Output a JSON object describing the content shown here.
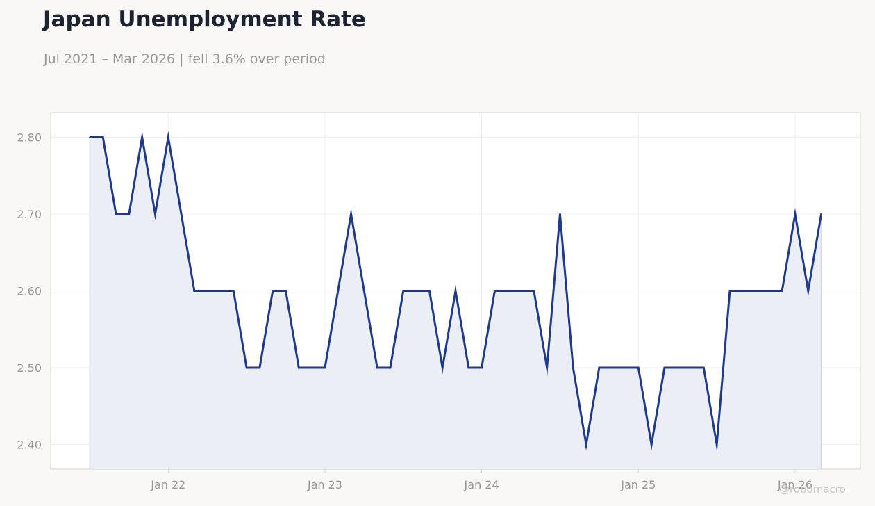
{
  "title": "Japan Unemployment Rate",
  "subtitle": "Jul 2021 – Mar 2026 | fell 3.6% over period",
  "watermark": "@robomacro",
  "colors": {
    "line": "#1f3a8a",
    "fill": "#eceef5",
    "grid": "#ededed",
    "axis": "#d6d4d0",
    "background": "#f9f8f6",
    "plot_background": "#ffffff"
  },
  "chart_data": {
    "type": "area",
    "title": "Japan Unemployment Rate",
    "subtitle": "Jul 2021 – Mar 2026 | fell 3.6% over period",
    "xlabel": "",
    "ylabel": "",
    "x_ticks": [
      "Jan 22",
      "Jan 23",
      "Jan 24",
      "Jan 25",
      "Jan 26"
    ],
    "y_ticks": [
      "2.40",
      "2.50",
      "2.60",
      "2.70",
      "2.80"
    ],
    "ylim": [
      2.368,
      2.832
    ],
    "xlim": [
      "2021-04",
      "2026-06"
    ],
    "grid": true,
    "legend": "none",
    "series": [
      {
        "x": [
          "2021-07",
          "2021-08",
          "2021-09",
          "2021-10",
          "2021-11",
          "2021-12",
          "2022-01",
          "2022-02",
          "2022-03",
          "2022-04",
          "2022-05",
          "2022-06",
          "2022-07",
          "2022-08",
          "2022-09",
          "2022-10",
          "2022-11",
          "2022-12",
          "2023-01",
          "2023-02",
          "2023-03",
          "2023-04",
          "2023-05",
          "2023-06",
          "2023-07",
          "2023-08",
          "2023-09",
          "2023-10",
          "2023-11",
          "2023-12",
          "2024-01",
          "2024-02",
          "2024-03",
          "2024-04",
          "2024-05",
          "2024-06",
          "2024-07",
          "2024-08",
          "2024-09",
          "2024-10",
          "2024-11",
          "2024-12",
          "2025-01",
          "2025-02",
          "2025-03",
          "2025-04",
          "2025-05",
          "2025-06",
          "2025-07",
          "2025-08",
          "2025-09",
          "2025-10",
          "2025-11",
          "2025-12",
          "2026-01",
          "2026-02",
          "2026-03"
        ],
        "values": [
          2.8,
          2.8,
          2.7,
          2.7,
          2.8,
          2.7,
          2.8,
          2.7,
          2.6,
          2.6,
          2.6,
          2.6,
          2.5,
          2.5,
          2.6,
          2.6,
          2.5,
          2.5,
          2.5,
          2.6,
          2.7,
          2.6,
          2.5,
          2.5,
          2.6,
          2.6,
          2.6,
          2.5,
          2.6,
          2.5,
          2.5,
          2.6,
          2.6,
          2.6,
          2.6,
          2.5,
          2.7,
          2.5,
          2.4,
          2.5,
          2.5,
          2.5,
          2.5,
          2.4,
          2.5,
          2.5,
          2.5,
          2.5,
          2.4,
          2.6,
          2.6,
          2.6,
          2.6,
          2.6,
          2.7,
          2.6,
          2.7
        ]
      }
    ]
  }
}
